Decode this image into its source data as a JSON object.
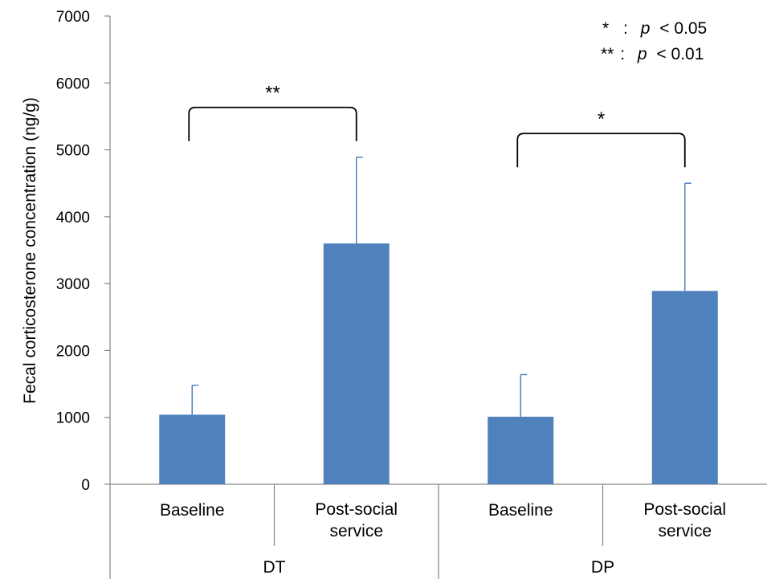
{
  "chart_data": {
    "type": "bar",
    "title": "",
    "ylabel": "Fecal corticosterone concentration (ng/g)",
    "xlabel": "",
    "ylim": [
      0,
      7000
    ],
    "yticks": [
      0,
      1000,
      2000,
      3000,
      4000,
      5000,
      6000,
      7000
    ],
    "grid": false,
    "bar_color": "#4f81bd",
    "groups": [
      {
        "label": "DT",
        "bars": [
          {
            "label": [
              "Baseline"
            ],
            "value": 1040,
            "error": 440
          },
          {
            "label": [
              "Post-social",
              "service"
            ],
            "value": 3600,
            "error": 1290
          }
        ],
        "significance": "**"
      },
      {
        "label": "DP",
        "bars": [
          {
            "label": [
              "Baseline"
            ],
            "value": 1010,
            "error": 630
          },
          {
            "label": [
              "Post-social",
              "service"
            ],
            "value": 2890,
            "error": 1610
          }
        ],
        "significance": "*"
      }
    ],
    "legend": {
      "placement": "top-right",
      "entries": [
        {
          "symbol": "*",
          "sep": ":",
          "p": "p",
          "text": "< 0.05"
        },
        {
          "symbol": "**",
          "sep": ":",
          "p": "p",
          "text": "< 0.01"
        }
      ]
    }
  }
}
